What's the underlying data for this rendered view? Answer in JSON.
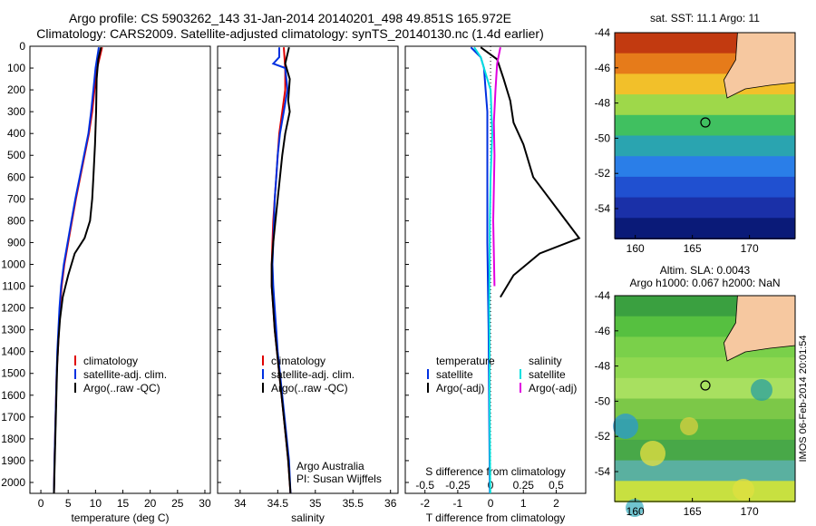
{
  "header": {
    "title_line1": "Argo profile: CS 5903262_143 31-Jan-2014 20140201_498 49.851S 165.972E",
    "title_line2": "Climatology: CARS2009. Satellite-adjusted climatology: synTS_20140130.nc (1.4d earlier)"
  },
  "credit": {
    "line1": "Argo Australia",
    "line2": "PI: Susan Wijffels"
  },
  "map_top": {
    "title": "sat. SST: 11.1 Argo: 11",
    "yticks": [
      "-44",
      "-46",
      "-48",
      "-50",
      "-52",
      "-54"
    ],
    "xticks": [
      "160",
      "165",
      "170"
    ]
  },
  "map_bottom": {
    "title_line1": "Altim. SLA: 0.0043",
    "title_line2": "Argo h1000: 0.067 h2000: NaN",
    "yticks": [
      "-44",
      "-46",
      "-48",
      "-50",
      "-52",
      "-54"
    ],
    "xticks": [
      "160",
      "165",
      "170"
    ],
    "side_label": "IMOS 06-Feb-2014 20:01:54"
  },
  "chart_data": [
    {
      "type": "line",
      "xlabel": "temperature (deg C)",
      "ylim": [
        2050,
        0
      ],
      "xlim": [
        -2,
        31
      ],
      "xticks": [
        0,
        5,
        10,
        15,
        20,
        25,
        30
      ],
      "yticks": [
        0,
        100,
        200,
        300,
        400,
        500,
        600,
        700,
        800,
        900,
        1000,
        1100,
        1200,
        1300,
        1400,
        1500,
        1600,
        1700,
        1800,
        1900,
        2000
      ],
      "legend": [
        "climatology",
        "satellite-adj. clim.",
        "Argo(..raw -QC)"
      ],
      "colors": [
        "#e00000",
        "#0030e0",
        "#000000"
      ],
      "series": [
        {
          "name": "climatology",
          "points": [
            [
              11.2,
              5
            ],
            [
              10.3,
              100
            ],
            [
              9.8,
              200
            ],
            [
              9.4,
              300
            ],
            [
              8.8,
              400
            ],
            [
              8.0,
              500
            ],
            [
              7.2,
              600
            ],
            [
              6.4,
              700
            ],
            [
              5.7,
              800
            ],
            [
              5.0,
              900
            ],
            [
              4.3,
              1000
            ],
            [
              3.8,
              1100
            ],
            [
              3.5,
              1200
            ],
            [
              3.3,
              1300
            ],
            [
              3.1,
              1400
            ],
            [
              2.9,
              1500
            ],
            [
              2.8,
              1600
            ],
            [
              2.7,
              1700
            ],
            [
              2.6,
              1800
            ],
            [
              2.5,
              1900
            ],
            [
              2.4,
              2050
            ]
          ]
        },
        {
          "name": "satellite-adj. clim.",
          "points": [
            [
              10.6,
              5
            ],
            [
              10.0,
              100
            ],
            [
              9.6,
              200
            ],
            [
              9.2,
              300
            ],
            [
              8.7,
              400
            ],
            [
              7.9,
              500
            ],
            [
              7.1,
              600
            ],
            [
              6.3,
              700
            ],
            [
              5.6,
              800
            ],
            [
              4.9,
              900
            ],
            [
              4.2,
              1000
            ],
            [
              3.7,
              1100
            ],
            [
              3.4,
              1200
            ],
            [
              3.2,
              1300
            ],
            [
              3.0,
              1400
            ],
            [
              2.9,
              1500
            ],
            [
              2.8,
              1600
            ],
            [
              2.7,
              1700
            ],
            [
              2.6,
              1800
            ],
            [
              2.5,
              1900
            ],
            [
              2.4,
              2050
            ]
          ]
        },
        {
          "name": "Argo(..raw -QC)",
          "points": [
            [
              11.0,
              5
            ],
            [
              10.5,
              60
            ],
            [
              10.2,
              150
            ],
            [
              10.1,
              300
            ],
            [
              9.9,
              450
            ],
            [
              9.6,
              600
            ],
            [
              9.4,
              700
            ],
            [
              9.0,
              800
            ],
            [
              8.0,
              880
            ],
            [
              6.2,
              950
            ],
            [
              5.0,
              1050
            ],
            [
              4.0,
              1150
            ],
            [
              3.5,
              1250
            ],
            [
              3.2,
              1350
            ],
            [
              3.0,
              1450
            ],
            [
              2.9,
              1550
            ],
            [
              2.8,
              1650
            ],
            [
              2.7,
              1750
            ],
            [
              2.6,
              1850
            ],
            [
              2.5,
              1950
            ],
            [
              2.4,
              2050
            ]
          ]
        }
      ]
    },
    {
      "type": "line",
      "xlabel": "salinity",
      "ylim": [
        2050,
        0
      ],
      "xlim": [
        33.7,
        36.1
      ],
      "xticks": [
        34,
        34.5,
        35,
        35.5,
        36
      ],
      "legend": [
        "climatology",
        "satellite-adj. clim.",
        "Argo(..raw -QC)"
      ],
      "colors": [
        "#e00000",
        "#0030e0",
        "#000000"
      ],
      "series": [
        {
          "name": "climatology",
          "points": [
            [
              34.58,
              5
            ],
            [
              34.6,
              100
            ],
            [
              34.6,
              200
            ],
            [
              34.56,
              300
            ],
            [
              34.52,
              400
            ],
            [
              34.5,
              500
            ],
            [
              34.48,
              600
            ],
            [
              34.46,
              700
            ],
            [
              34.44,
              800
            ],
            [
              34.43,
              900
            ],
            [
              34.42,
              1000
            ],
            [
              34.42,
              1100
            ],
            [
              34.44,
              1200
            ],
            [
              34.46,
              1300
            ],
            [
              34.49,
              1400
            ],
            [
              34.52,
              1500
            ],
            [
              34.55,
              1600
            ],
            [
              34.58,
              1700
            ],
            [
              34.61,
              1800
            ],
            [
              34.64,
              1900
            ],
            [
              34.67,
              2050
            ]
          ]
        },
        {
          "name": "satellite-adj. clim.",
          "points": [
            [
              34.52,
              5
            ],
            [
              34.52,
              50
            ],
            [
              34.44,
              80
            ],
            [
              34.6,
              100
            ],
            [
              34.63,
              200
            ],
            [
              34.58,
              300
            ],
            [
              34.53,
              400
            ],
            [
              34.5,
              500
            ],
            [
              34.48,
              600
            ],
            [
              34.46,
              700
            ],
            [
              34.45,
              800
            ],
            [
              34.44,
              900
            ],
            [
              34.43,
              1000
            ],
            [
              34.44,
              1100
            ],
            [
              34.46,
              1200
            ],
            [
              34.48,
              1300
            ],
            [
              34.5,
              1400
            ],
            [
              34.53,
              1500
            ],
            [
              34.56,
              1600
            ],
            [
              34.59,
              1700
            ],
            [
              34.62,
              1800
            ],
            [
              34.65,
              1900
            ],
            [
              34.67,
              2050
            ]
          ]
        },
        {
          "name": "Argo(..raw -QC)",
          "points": [
            [
              34.65,
              5
            ],
            [
              34.6,
              80
            ],
            [
              34.66,
              150
            ],
            [
              34.64,
              250
            ],
            [
              34.66,
              300
            ],
            [
              34.6,
              400
            ],
            [
              34.56,
              500
            ],
            [
              34.53,
              600
            ],
            [
              34.5,
              700
            ],
            [
              34.47,
              800
            ],
            [
              34.44,
              900
            ],
            [
              34.42,
              1000
            ],
            [
              34.42,
              1100
            ],
            [
              34.44,
              1200
            ],
            [
              34.46,
              1300
            ],
            [
              34.49,
              1400
            ],
            [
              34.52,
              1500
            ],
            [
              34.55,
              1600
            ],
            [
              34.58,
              1700
            ],
            [
              34.61,
              1800
            ],
            [
              34.64,
              1900
            ],
            [
              34.67,
              2050
            ]
          ]
        }
      ]
    },
    {
      "type": "line",
      "xlabel": "T difference from climatology",
      "xlabel_top": "S difference from climatology",
      "ylim": [
        2050,
        0
      ],
      "xlim": [
        -2.6,
        2.9
      ],
      "xticks": [
        -2,
        -1,
        0,
        1,
        2
      ],
      "xticks_top_labels": [
        "-0.5",
        "-0.25",
        "0",
        "0.25",
        "0.5"
      ],
      "legend_headers": [
        "temperature",
        "salinity"
      ],
      "legend": [
        "satellite",
        "Argo(-adj)",
        "satellite",
        "Argo(-adj)"
      ],
      "colors": [
        "#0030e0",
        "#000000",
        "#00e0e0",
        "#e000e0"
      ],
      "series": [
        {
          "name": "temperature satellite",
          "points": [
            [
              -0.6,
              5
            ],
            [
              -0.3,
              50
            ],
            [
              -0.2,
              100
            ],
            [
              -0.15,
              200
            ],
            [
              -0.1,
              300
            ],
            [
              -0.1,
              500
            ],
            [
              -0.1,
              700
            ],
            [
              -0.1,
              900
            ],
            [
              -0.08,
              1100
            ],
            [
              -0.06,
              1300
            ],
            [
              -0.05,
              1500
            ],
            [
              -0.04,
              1700
            ],
            [
              -0.03,
              1900
            ],
            [
              -0.02,
              2050
            ]
          ]
        },
        {
          "name": "temperature Argo(-adj)",
          "points": [
            [
              -0.3,
              5
            ],
            [
              0.2,
              60
            ],
            [
              0.4,
              150
            ],
            [
              0.6,
              250
            ],
            [
              0.7,
              350
            ],
            [
              1.0,
              450
            ],
            [
              1.3,
              600
            ],
            [
              1.8,
              700
            ],
            [
              2.3,
              800
            ],
            [
              2.7,
              880
            ],
            [
              1.5,
              950
            ],
            [
              0.7,
              1050
            ],
            [
              0.3,
              1150
            ]
          ]
        },
        {
          "name": "salinity satellite",
          "points": [
            [
              -0.5,
              5
            ],
            [
              -0.3,
              50
            ],
            [
              -0.2,
              100
            ],
            [
              0.0,
              200
            ],
            [
              0.05,
              400
            ],
            [
              0.0,
              600
            ],
            [
              -0.02,
              800
            ],
            [
              -0.03,
              1000
            ],
            [
              -0.04,
              1200
            ],
            [
              -0.03,
              1400
            ],
            [
              -0.03,
              1600
            ],
            [
              -0.02,
              1800
            ],
            [
              -0.01,
              2050
            ]
          ]
        },
        {
          "name": "salinity Argo(-adj)",
          "points": [
            [
              0.3,
              5
            ],
            [
              0.2,
              80
            ],
            [
              0.15,
              200
            ],
            [
              0.1,
              350
            ],
            [
              0.12,
              500
            ],
            [
              0.1,
              650
            ],
            [
              0.08,
              800
            ],
            [
              0.1,
              950
            ],
            [
              0.12,
              1100
            ]
          ]
        }
      ]
    }
  ]
}
